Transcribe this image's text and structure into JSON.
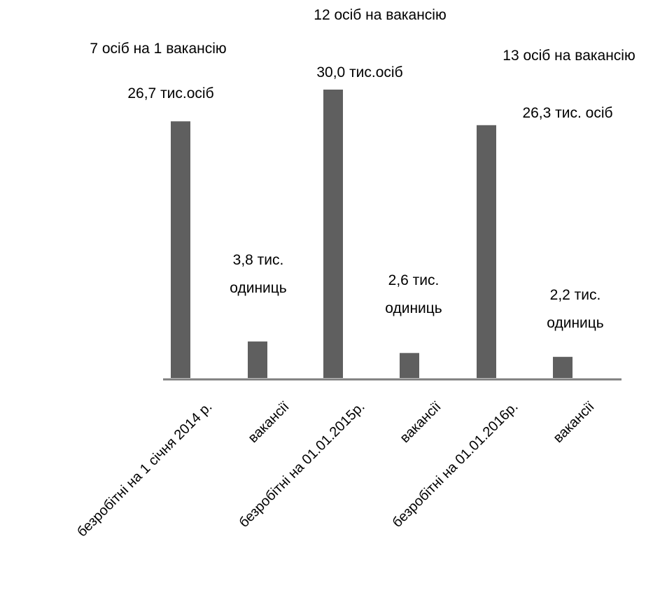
{
  "chart_data": {
    "type": "bar",
    "categories": [
      "безробітні на 1 січня 2014 р.",
      "вакансії",
      "безробітні на 01.01.2015р.",
      "вакансії",
      "безробітні на 01.01.2016р.",
      "вакансії"
    ],
    "values": [
      26.7,
      3.8,
      30.0,
      2.6,
      26.3,
      2.2
    ],
    "value_labels": [
      [
        "26,7 тис.осіб"
      ],
      [
        "3,8 тис.",
        "одиниць"
      ],
      [
        "30,0 тис.осіб"
      ],
      [
        "2,6 тис.",
        "одиниць"
      ],
      [
        "26,3 тис. осіб"
      ],
      [
        "2,2 тис.",
        "одиниць"
      ]
    ],
    "annotations": [
      "7 осіб на 1 вакансію",
      "12 осіб на вакансію",
      "13 осіб на вакансію"
    ],
    "title": "",
    "xlabel": "",
    "ylabel": "",
    "ylim": [
      0,
      30
    ],
    "grid": false,
    "legend": "none",
    "colors": {
      "bar": "#5f5f5f",
      "axis": "#7f7f7f",
      "text": "#000000"
    }
  }
}
